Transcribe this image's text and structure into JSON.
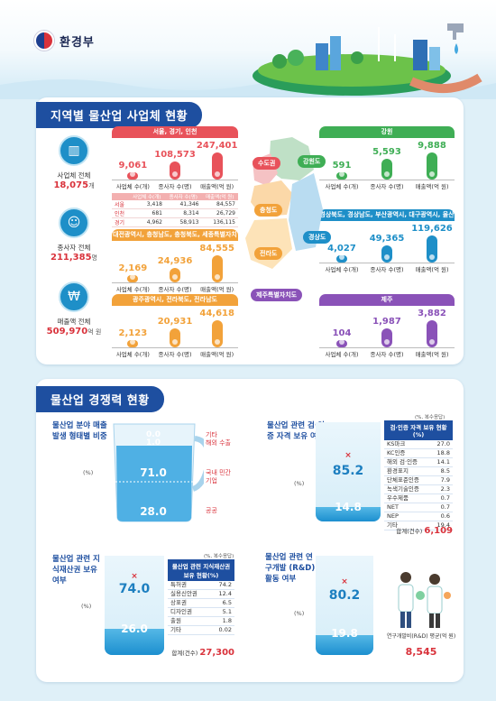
{
  "header": {
    "ministry": "환경부"
  },
  "section1": {
    "title": "지역별 물산업 사업체 현황",
    "totals": [
      {
        "label": "사업체 전체",
        "value": "18,075",
        "unit": "개"
      },
      {
        "label": "종사자 전체",
        "value": "211,385",
        "unit": "명"
      },
      {
        "label": "매출액 전체",
        "value": "509,970",
        "unit": "억 원"
      }
    ],
    "axis_labels": {
      "biz": "사업체 수(개)",
      "emp": "종사자 수(명)",
      "sales": "매출액(억 원)"
    },
    "regions": {
      "capital": {
        "name": "서울, 경기, 인천",
        "map": "수도권",
        "biz": "9,061",
        "emp": "108,573",
        "sales": "247,401",
        "table": {
          "headers": [
            "",
            "사업체 수(개)",
            "종사자 수(명)",
            "매출액(억 원)"
          ],
          "rows": [
            [
              "서울",
              "3,418",
              "41,346",
              "84,557"
            ],
            [
              "인천",
              "681",
              "8,314",
              "26,729"
            ],
            [
              "경기",
              "4,962",
              "58,913",
              "136,115"
            ]
          ]
        }
      },
      "chungcheong": {
        "name": "대전광역시, 충청남도, 충청북도, 세종특별자치시",
        "map": "충청도",
        "biz": "2,169",
        "emp": "24,936",
        "sales": "84,555"
      },
      "jeolla": {
        "name": "광주광역시, 전라북도, 전라남도",
        "map": "전라도",
        "biz": "2,123",
        "emp": "20,931",
        "sales": "44,618"
      },
      "jeju": {
        "name": "제주",
        "map": "제주특별자치도",
        "biz": "104",
        "emp": "1,987",
        "sales": "3,882"
      },
      "gangwon": {
        "name": "강원",
        "map": "강원도",
        "biz": "591",
        "emp": "5,593",
        "sales": "9,888"
      },
      "gyeongsang": {
        "name": "경상북도, 경상남도, 부산광역시, 대구광역시, 울산광역시",
        "map": "경상도",
        "biz": "4,027",
        "emp": "49,365",
        "sales": "119,626"
      }
    }
  },
  "section2": {
    "title": "물산업 경쟁력 현황",
    "unit_pct": "(%)",
    "sales_type": {
      "title": "물산업 분야 매출 발생 형태별 비중",
      "items": [
        {
          "label": "기타",
          "value": "0.0"
        },
        {
          "label": "해외 수출",
          "value": "1.0"
        },
        {
          "label": "국내 민간기업",
          "value": "71.0"
        },
        {
          "label": "공공",
          "value": "28.0"
        }
      ]
    },
    "certification": {
      "title": "물산업 관련 검·인증 자격 보유 여부",
      "note": "(%, 복수응답)",
      "yes": "85.2",
      "no": "14.8",
      "table_title": "검·인증 자격 보유 현황(%)",
      "rows": [
        [
          "KS마크",
          "27.0"
        ],
        [
          "KC인증",
          "18.8"
        ],
        [
          "해외 검·인증",
          "14.1"
        ],
        [
          "환경표지",
          "8.5"
        ],
        [
          "단체표준인증",
          "7.9"
        ],
        [
          "녹색기술인증",
          "2.3"
        ],
        [
          "우수제품",
          "0.7"
        ],
        [
          "NET",
          "0.7"
        ],
        [
          "NEP",
          "0.6"
        ],
        [
          "기타",
          "19.4"
        ]
      ],
      "sum_label": "합계(건수)",
      "sum_value": "6,109"
    },
    "ip": {
      "title": "물산업 관련 지식재산권 보유 여부",
      "note": "(%, 복수응답)",
      "yes": "74.0",
      "no": "26.0",
      "table_title": "물산업 관련 지식재산권 보유 현황(%)",
      "rows": [
        [
          "특허권",
          "74.2"
        ],
        [
          "실용신안권",
          "12.4"
        ],
        [
          "상표권",
          "6.5"
        ],
        [
          "디자인권",
          "5.1"
        ],
        [
          "출원",
          "1.8"
        ],
        [
          "기타",
          "0.02"
        ]
      ],
      "sum_label": "합계(건수)",
      "sum_value": "27,300"
    },
    "rnd": {
      "title": "물산업 관련 연구개발 (R&D)활동 여부",
      "yes": "80.2",
      "no": "19.8",
      "cost_label": "연구개발비(R&D) 평균(억 원)",
      "cost_value": "8,545"
    }
  },
  "colors": {
    "capital": "#e8525a",
    "chungcheong": "#f2a23a",
    "jeolla": "#f2a23a",
    "gangwon": "#3fae55",
    "gyeongsang": "#1e8fc8",
    "jeju": "#8a52b8",
    "navy": "#1e4fa0"
  }
}
